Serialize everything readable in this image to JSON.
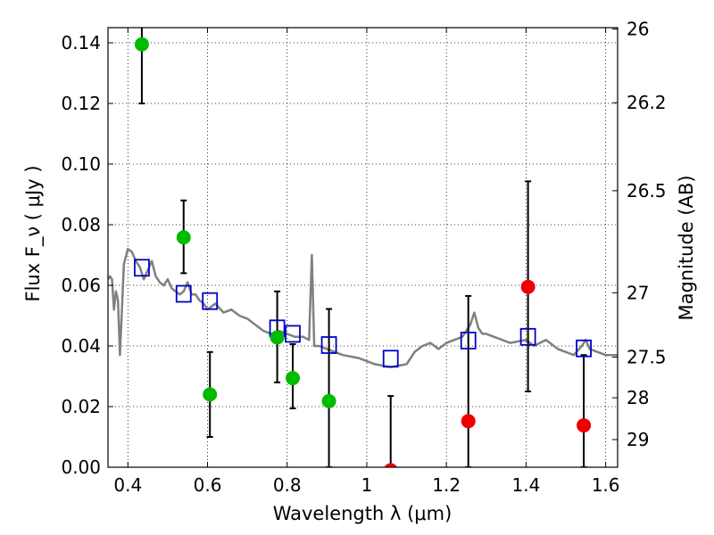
{
  "chart_data": {
    "type": "scatter",
    "xlabel": "Wavelength  λ (μm)",
    "ylabel_left": "Flux  F_ν  ( μJy )",
    "ylabel_right": "Magnitude (AB)",
    "xlim": [
      0.35,
      1.63
    ],
    "ylim": [
      0.0,
      0.145
    ],
    "grid": true,
    "x_ticks": [
      0.4,
      0.6,
      0.8,
      1.0,
      1.2,
      1.4,
      1.6
    ],
    "x_tick_labels": [
      "0.4",
      "0.6",
      "0.8",
      "1",
      "1.2",
      "1.4",
      "1.6"
    ],
    "y_ticks": [
      0.0,
      0.02,
      0.04,
      0.06,
      0.08,
      0.1,
      0.12,
      0.14
    ],
    "y_tick_labels": [
      "0.00",
      "0.02",
      "0.04",
      "0.06",
      "0.08",
      "0.10",
      "0.12",
      "0.14"
    ],
    "right_ticks": [
      {
        "label": "26",
        "mag": 26.0
      },
      {
        "label": "26.2",
        "mag": 26.2
      },
      {
        "label": "26.5",
        "mag": 26.5
      },
      {
        "label": "27",
        "mag": 27.0
      },
      {
        "label": "27.5",
        "mag": 27.5
      },
      {
        "label": "28",
        "mag": 28.0
      },
      {
        "label": "29",
        "mag": 29.0
      }
    ],
    "colors": {
      "green": "#00bb00",
      "red": "#ee0000",
      "model_box": "#0000cc",
      "sed": "#808080",
      "errorbar": "#000000"
    },
    "series": [
      {
        "name": "",
        "marker": "circle",
        "color": "green",
        "x": [
          0.435,
          0.54,
          0.606,
          0.775,
          0.814,
          0.905
        ],
        "y": [
          0.1395,
          0.0758,
          0.024,
          0.0428,
          0.0294,
          0.0218
        ],
        "err_low": [
          0.0195,
          0.0118,
          0.014,
          0.0148,
          0.01,
          0.0218
        ],
        "err_high": [
          0.01,
          0.0122,
          0.014,
          0.0152,
          0.0112,
          0.0304
        ]
      },
      {
        "name": "",
        "marker": "circle",
        "color": "red",
        "x": [
          1.06,
          1.255,
          1.405,
          1.545
        ],
        "y": [
          -0.001,
          0.0152,
          0.0595,
          0.0138
        ],
        "err_low": [
          0.0,
          0.0152,
          0.0345,
          0.0138
        ],
        "err_high": [
          0.0245,
          0.0413,
          0.0348,
          0.0232
        ]
      },
      {
        "name": "",
        "marker": "square",
        "color": "model_box",
        "x": [
          0.435,
          0.54,
          0.606,
          0.775,
          0.814,
          0.905,
          1.06,
          1.255,
          1.405,
          1.545
        ],
        "y": [
          0.0658,
          0.0572,
          0.0548,
          0.0458,
          0.044,
          0.0403,
          0.0358,
          0.0418,
          0.043,
          0.0392
        ]
      },
      {
        "name": "",
        "type": "line",
        "color": "sed",
        "x": [
          0.35,
          0.355,
          0.36,
          0.365,
          0.37,
          0.375,
          0.38,
          0.39,
          0.4,
          0.41,
          0.42,
          0.43,
          0.44,
          0.45,
          0.46,
          0.47,
          0.48,
          0.49,
          0.5,
          0.51,
          0.52,
          0.53,
          0.54,
          0.55,
          0.56,
          0.57,
          0.58,
          0.59,
          0.6,
          0.62,
          0.64,
          0.66,
          0.68,
          0.7,
          0.72,
          0.74,
          0.76,
          0.78,
          0.8,
          0.82,
          0.84,
          0.855,
          0.862,
          0.868,
          0.872,
          0.88,
          0.9,
          0.94,
          0.98,
          1.02,
          1.06,
          1.1,
          1.12,
          1.14,
          1.16,
          1.18,
          1.2,
          1.22,
          1.24,
          1.26,
          1.27,
          1.28,
          1.29,
          1.3,
          1.32,
          1.36,
          1.4,
          1.42,
          1.45,
          1.48,
          1.5,
          1.52,
          1.54,
          1.55,
          1.56,
          1.58,
          1.6,
          1.63
        ],
        "y": [
          0.062,
          0.063,
          0.062,
          0.052,
          0.058,
          0.055,
          0.037,
          0.067,
          0.072,
          0.071,
          0.068,
          0.066,
          0.062,
          0.065,
          0.068,
          0.063,
          0.061,
          0.06,
          0.062,
          0.059,
          0.058,
          0.057,
          0.058,
          0.061,
          0.057,
          0.057,
          0.055,
          0.054,
          0.052,
          0.054,
          0.051,
          0.052,
          0.05,
          0.049,
          0.047,
          0.045,
          0.044,
          0.045,
          0.044,
          0.043,
          0.043,
          0.042,
          0.07,
          0.04,
          0.04,
          0.04,
          0.039,
          0.037,
          0.036,
          0.034,
          0.033,
          0.034,
          0.038,
          0.04,
          0.041,
          0.039,
          0.041,
          0.042,
          0.043,
          0.047,
          0.051,
          0.046,
          0.044,
          0.044,
          0.043,
          0.041,
          0.042,
          0.04,
          0.042,
          0.039,
          0.038,
          0.037,
          0.04,
          0.042,
          0.039,
          0.038,
          0.037,
          0.037
        ]
      }
    ]
  }
}
